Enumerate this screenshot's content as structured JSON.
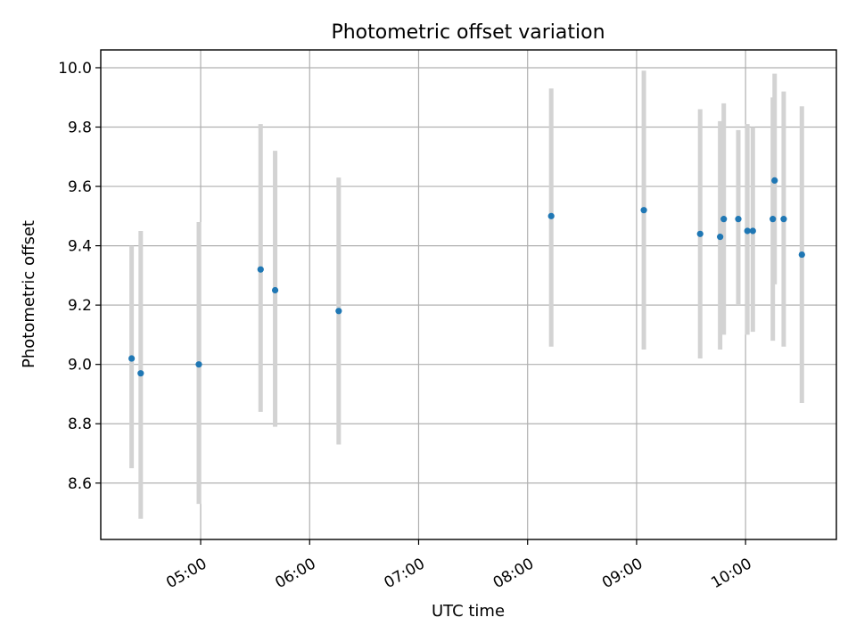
{
  "chart_data": {
    "type": "scatter",
    "title": "Photometric offset variation",
    "xlabel": "UTC time",
    "ylabel": "Photometric offset",
    "x_format": "HH:MM",
    "xlim": [
      "04:05",
      "10:50"
    ],
    "ylim": [
      8.41,
      10.06
    ],
    "x_ticks": [
      "05:00",
      "06:00",
      "07:00",
      "08:00",
      "09:00",
      "10:00"
    ],
    "y_ticks": [
      8.6,
      8.8,
      9.0,
      9.2,
      9.4,
      9.6,
      9.8,
      10.0
    ],
    "grid": true,
    "legend": "none",
    "colors": {
      "marker": "#1f77b4",
      "error_bar": "#d3d3d3"
    },
    "points": [
      {
        "x": "04:22",
        "y": 9.02,
        "ylow": 8.65,
        "yhigh": 9.4
      },
      {
        "x": "04:27",
        "y": 8.97,
        "ylow": 8.48,
        "yhigh": 9.45
      },
      {
        "x": "04:59",
        "y": 9.0,
        "ylow": 8.53,
        "yhigh": 9.48
      },
      {
        "x": "05:33",
        "y": 9.32,
        "ylow": 8.84,
        "yhigh": 9.81
      },
      {
        "x": "05:41",
        "y": 9.25,
        "ylow": 8.79,
        "yhigh": 9.72
      },
      {
        "x": "06:16",
        "y": 9.18,
        "ylow": 8.73,
        "yhigh": 9.63
      },
      {
        "x": "08:13",
        "y": 9.5,
        "ylow": 9.06,
        "yhigh": 9.93
      },
      {
        "x": "09:04",
        "y": 9.52,
        "ylow": 9.05,
        "yhigh": 9.99
      },
      {
        "x": "09:35",
        "y": 9.44,
        "ylow": 9.02,
        "yhigh": 9.86
      },
      {
        "x": "09:46",
        "y": 9.43,
        "ylow": 9.05,
        "yhigh": 9.82
      },
      {
        "x": "09:48",
        "y": 9.49,
        "ylow": 9.1,
        "yhigh": 9.88
      },
      {
        "x": "09:56",
        "y": 9.49,
        "ylow": 9.2,
        "yhigh": 9.79
      },
      {
        "x": "10:01",
        "y": 9.45,
        "ylow": 9.1,
        "yhigh": 9.81
      },
      {
        "x": "10:04",
        "y": 9.45,
        "ylow": 9.11,
        "yhigh": 9.8
      },
      {
        "x": "10:15",
        "y": 9.49,
        "ylow": 9.08,
        "yhigh": 9.9
      },
      {
        "x": "10:16",
        "y": 9.62,
        "ylow": 9.27,
        "yhigh": 9.98
      },
      {
        "x": "10:21",
        "y": 9.49,
        "ylow": 9.06,
        "yhigh": 9.92
      },
      {
        "x": "10:31",
        "y": 9.37,
        "ylow": 8.87,
        "yhigh": 9.87
      }
    ]
  }
}
